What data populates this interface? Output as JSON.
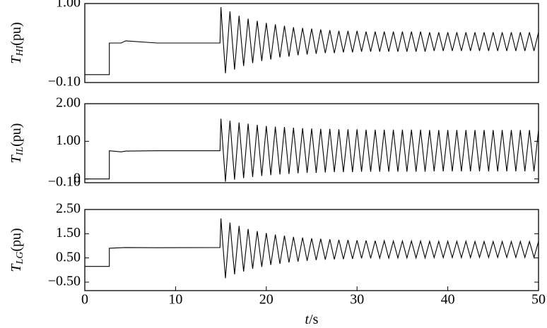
{
  "chart_data": [
    {
      "type": "line",
      "ylabel": {
        "symbol": "T",
        "sub": "HI",
        "unit": "(pu)"
      },
      "color": "#000000",
      "xlim": [
        0,
        50
      ],
      "ylim": [
        -0.1,
        1.0
      ],
      "yticks": [
        {
          "value": 1.0,
          "label": "1.00"
        },
        {
          "value": -0.1,
          "label": "−0.10"
        }
      ],
      "x": [
        0,
        2.7,
        2.7,
        4,
        4.5,
        8,
        14.9,
        15,
        15.5,
        16,
        16.5,
        17,
        17.5,
        18,
        18.5,
        19,
        19.5,
        20,
        20.5,
        21,
        21.5,
        22,
        22.5,
        23,
        23.5,
        24,
        24.5,
        25,
        25.5,
        26,
        26.5,
        27,
        27.5,
        28,
        28.5,
        29,
        29.5,
        30,
        30.5,
        31,
        31.5,
        32,
        32.5,
        33,
        33.5,
        34,
        34.5,
        35,
        35.5,
        36,
        36.5,
        37,
        37.5,
        38,
        38.5,
        39,
        39.5,
        40,
        40.5,
        41,
        41.5,
        42,
        42.5,
        43,
        43.5,
        44,
        44.5,
        45,
        45.5,
        46,
        46.5,
        47,
        47.5,
        48,
        48.5,
        49,
        49.5,
        50
      ],
      "values": [
        0.01,
        0.01,
        0.45,
        0.45,
        0.48,
        0.45,
        0.45,
        0.95,
        0.03,
        0.89,
        0.08,
        0.83,
        0.13,
        0.79,
        0.17,
        0.76,
        0.2,
        0.73,
        0.22,
        0.71,
        0.25,
        0.69,
        0.26,
        0.67,
        0.28,
        0.66,
        0.29,
        0.65,
        0.3,
        0.64,
        0.31,
        0.63,
        0.31,
        0.62,
        0.32,
        0.62,
        0.32,
        0.62,
        0.33,
        0.61,
        0.33,
        0.61,
        0.33,
        0.61,
        0.33,
        0.61,
        0.33,
        0.61,
        0.33,
        0.61,
        0.33,
        0.61,
        0.33,
        0.6,
        0.34,
        0.6,
        0.34,
        0.6,
        0.34,
        0.6,
        0.34,
        0.6,
        0.34,
        0.6,
        0.34,
        0.6,
        0.34,
        0.6,
        0.34,
        0.6,
        0.34,
        0.6,
        0.34,
        0.6,
        0.34,
        0.6,
        0.34,
        0.6
      ]
    },
    {
      "type": "line",
      "ylabel": {
        "symbol": "T",
        "sub": "IL",
        "unit": "(pu)"
      },
      "color": "#000000",
      "xlim": [
        0,
        50
      ],
      "ylim": [
        -0.1,
        2.0
      ],
      "yticks": [
        {
          "value": 2.0,
          "label": "2.00"
        },
        {
          "value": 1.0,
          "label": "1.00"
        },
        0,
        {
          "value": -0.1,
          "label": "−0.10"
        }
      ],
      "x": [
        0,
        2.7,
        2.7,
        4,
        4.5,
        8,
        14.9,
        15,
        15.5,
        16,
        16.5,
        17,
        17.5,
        18,
        18.5,
        19,
        19.5,
        20,
        20.5,
        21,
        21.5,
        22,
        22.5,
        23,
        23.5,
        24,
        24.5,
        25,
        25.5,
        26,
        26.5,
        27,
        27.5,
        28,
        28.5,
        29,
        29.5,
        30,
        30.5,
        31,
        31.5,
        32,
        32.5,
        33,
        33.5,
        34,
        34.5,
        35,
        35.5,
        36,
        36.5,
        37,
        37.5,
        38,
        38.5,
        39,
        39.5,
        40,
        40.5,
        41,
        41.5,
        42,
        42.5,
        43,
        43.5,
        44,
        44.5,
        45,
        45.5,
        46,
        46.5,
        47,
        47.5,
        48,
        48.5,
        49,
        49.5,
        50
      ],
      "values": [
        0,
        0,
        0.75,
        0.72,
        0.74,
        0.75,
        0.75,
        1.6,
        -0.07,
        1.55,
        -0.02,
        1.5,
        0.02,
        1.47,
        0.05,
        1.44,
        0.08,
        1.41,
        0.1,
        1.39,
        0.12,
        1.38,
        0.13,
        1.36,
        0.15,
        1.35,
        0.16,
        1.34,
        0.16,
        1.33,
        0.17,
        1.33,
        0.18,
        1.32,
        0.18,
        1.32,
        0.18,
        1.32,
        0.19,
        1.31,
        0.19,
        1.31,
        0.19,
        1.31,
        0.19,
        1.31,
        0.19,
        1.31,
        0.19,
        1.31,
        0.19,
        1.31,
        0.19,
        1.3,
        0.2,
        1.3,
        0.2,
        1.3,
        0.2,
        1.3,
        0.2,
        1.3,
        0.2,
        1.3,
        0.2,
        1.3,
        0.2,
        1.3,
        0.2,
        1.3,
        0.2,
        1.3,
        0.2,
        1.3,
        0.2,
        1.3,
        0.2,
        1.3
      ]
    },
    {
      "type": "line",
      "ylabel": {
        "symbol": "T",
        "sub": "LG",
        "unit": "(pu)"
      },
      "color": "#000000",
      "xlim": [
        0,
        50
      ],
      "ylim": [
        -0.85,
        2.5
      ],
      "yticks": [
        {
          "value": 2.5,
          "label": "2.50"
        },
        {
          "value": 1.5,
          "label": "1.50"
        },
        {
          "value": 0.5,
          "label": "0.50"
        },
        {
          "value": -0.5,
          "label": "−0.50"
        }
      ],
      "xticks": [
        0,
        10,
        20,
        30,
        40,
        50
      ],
      "xlabel": {
        "var": "t",
        "unit": "/s"
      },
      "x": [
        0,
        2.7,
        2.7,
        4,
        4.5,
        8,
        14.9,
        15,
        15.5,
        16,
        16.5,
        17,
        17.5,
        18,
        18.5,
        19,
        19.5,
        20,
        20.5,
        21,
        21.5,
        22,
        22.5,
        23,
        23.5,
        24,
        24.5,
        25,
        25.5,
        26,
        26.5,
        27,
        27.5,
        28,
        28.5,
        29,
        29.5,
        30,
        30.5,
        31,
        31.5,
        32,
        32.5,
        33,
        33.5,
        34,
        34.5,
        35,
        35.5,
        36,
        36.5,
        37,
        37.5,
        38,
        38.5,
        39,
        39.5,
        40,
        40.5,
        41,
        41.5,
        42,
        42.5,
        43,
        43.5,
        44,
        44.5,
        45,
        45.5,
        46,
        46.5,
        47,
        47.5,
        48,
        48.5,
        49,
        49.5,
        50
      ],
      "values": [
        0.15,
        0.15,
        0.9,
        0.92,
        0.93,
        0.92,
        0.93,
        2.13,
        -0.34,
        1.96,
        -0.18,
        1.82,
        -0.06,
        1.7,
        0.05,
        1.61,
        0.13,
        1.53,
        0.21,
        1.47,
        0.26,
        1.42,
        0.31,
        1.37,
        0.35,
        1.34,
        0.38,
        1.31,
        0.41,
        1.29,
        0.43,
        1.27,
        0.44,
        1.25,
        0.45,
        1.24,
        0.46,
        1.23,
        0.48,
        1.22,
        0.48,
        1.21,
        0.49,
        1.21,
        0.49,
        1.2,
        0.5,
        1.2,
        0.5,
        1.2,
        0.5,
        1.2,
        0.5,
        1.19,
        0.51,
        1.19,
        0.51,
        1.19,
        0.51,
        1.19,
        0.51,
        1.19,
        0.51,
        1.18,
        0.52,
        1.18,
        0.52,
        1.18,
        0.52,
        1.18,
        0.52,
        1.18,
        0.52,
        1.18,
        0.52,
        1.18,
        0.52,
        1.18
      ]
    }
  ]
}
